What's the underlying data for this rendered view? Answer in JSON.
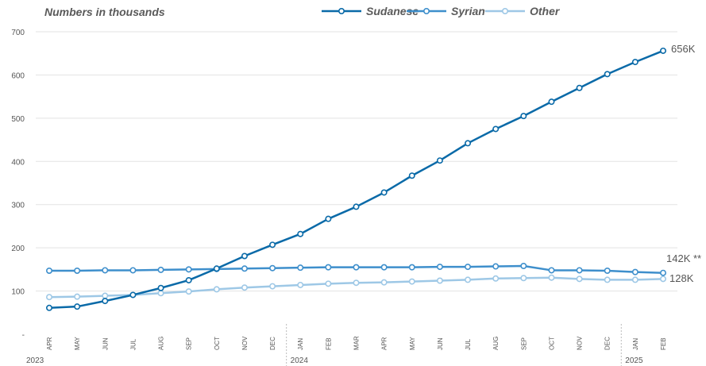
{
  "chart_data": {
    "type": "line",
    "subtitle": "Numbers in thousands",
    "categories": [
      "APR",
      "MAY",
      "JUN",
      "JUL",
      "AUG",
      "SEP",
      "OCT",
      "NOV",
      "DEC",
      "JAN",
      "FEB",
      "MAR",
      "APR",
      "MAY",
      "JUN",
      "JUL",
      "AUG",
      "SEP",
      "OCT",
      "NOV",
      "DEC",
      "JAN",
      "FEB"
    ],
    "years": [
      {
        "label": "2023",
        "start_index": 0
      },
      {
        "label": "2024",
        "start_index": 9
      },
      {
        "label": "2025",
        "start_index": 21
      }
    ],
    "yticks": [
      "-",
      "100",
      "200",
      "300",
      "400",
      "500",
      "600",
      "700"
    ],
    "ylim": [
      0,
      700
    ],
    "grid": true,
    "legend_position": "top-right",
    "series": [
      {
        "name": "Sudanese",
        "color": "#0a6aa8",
        "values": [
          61,
          64,
          77,
          91,
          107,
          125,
          152,
          181,
          207,
          232,
          267,
          295,
          328,
          367,
          402,
          442,
          475,
          505,
          538,
          570,
          602,
          630,
          656
        ],
        "end_label": "656K"
      },
      {
        "name": "Syrian",
        "color": "#3e8fcc",
        "values": [
          147,
          147,
          148,
          148,
          149,
          150,
          151,
          152,
          153,
          154,
          155,
          155,
          155,
          155,
          156,
          156,
          157,
          158,
          148,
          148,
          147,
          144,
          142
        ],
        "end_label": "142K **"
      },
      {
        "name": "Other",
        "color": "#9ec8e6",
        "values": [
          86,
          87,
          89,
          91,
          95,
          99,
          104,
          108,
          111,
          114,
          117,
          119,
          120,
          122,
          124,
          126,
          129,
          130,
          131,
          128,
          126,
          126,
          128
        ],
        "end_label": "128K"
      }
    ]
  }
}
